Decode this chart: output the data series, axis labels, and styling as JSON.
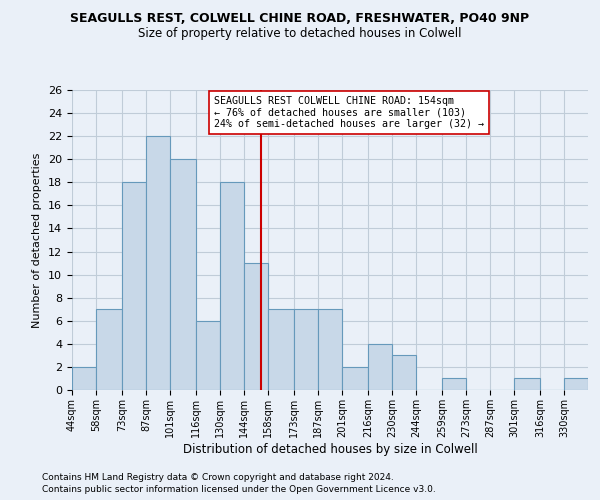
{
  "title1": "SEAGULLS REST, COLWELL CHINE ROAD, FRESHWATER, PO40 9NP",
  "title2": "Size of property relative to detached houses in Colwell",
  "xlabel": "Distribution of detached houses by size in Colwell",
  "ylabel": "Number of detached properties",
  "footnote1": "Contains HM Land Registry data © Crown copyright and database right 2024.",
  "footnote2": "Contains public sector information licensed under the Open Government Licence v3.0.",
  "annotation_line1": "SEAGULLS REST COLWELL CHINE ROAD: 154sqm",
  "annotation_line2": "← 76% of detached houses are smaller (103)",
  "annotation_line3": "24% of semi-detached houses are larger (32) →",
  "bar_color": "#c8d8e8",
  "bar_edge_color": "#6699bb",
  "vline_color": "#cc0000",
  "annotation_box_color": "#ffffff",
  "annotation_box_edge": "#cc0000",
  "grid_color": "#c0ccd8",
  "background_color": "#eaf0f8",
  "categories": [
    "44sqm",
    "58sqm",
    "73sqm",
    "87sqm",
    "101sqm",
    "116sqm",
    "130sqm",
    "144sqm",
    "158sqm",
    "173sqm",
    "187sqm",
    "201sqm",
    "216sqm",
    "230sqm",
    "244sqm",
    "259sqm",
    "273sqm",
    "287sqm",
    "301sqm",
    "316sqm",
    "330sqm"
  ],
  "values": [
    2,
    7,
    18,
    22,
    20,
    6,
    18,
    11,
    7,
    7,
    7,
    2,
    4,
    3,
    0,
    1,
    0,
    0,
    1,
    0,
    1
  ],
  "bin_edges": [
    44,
    58,
    73,
    87,
    101,
    116,
    130,
    144,
    158,
    173,
    187,
    201,
    216,
    230,
    244,
    259,
    273,
    287,
    301,
    316,
    330,
    344
  ],
  "ylim": [
    0,
    26
  ],
  "yticks": [
    0,
    2,
    4,
    6,
    8,
    10,
    12,
    14,
    16,
    18,
    20,
    22,
    24,
    26
  ],
  "vline_x": 154
}
